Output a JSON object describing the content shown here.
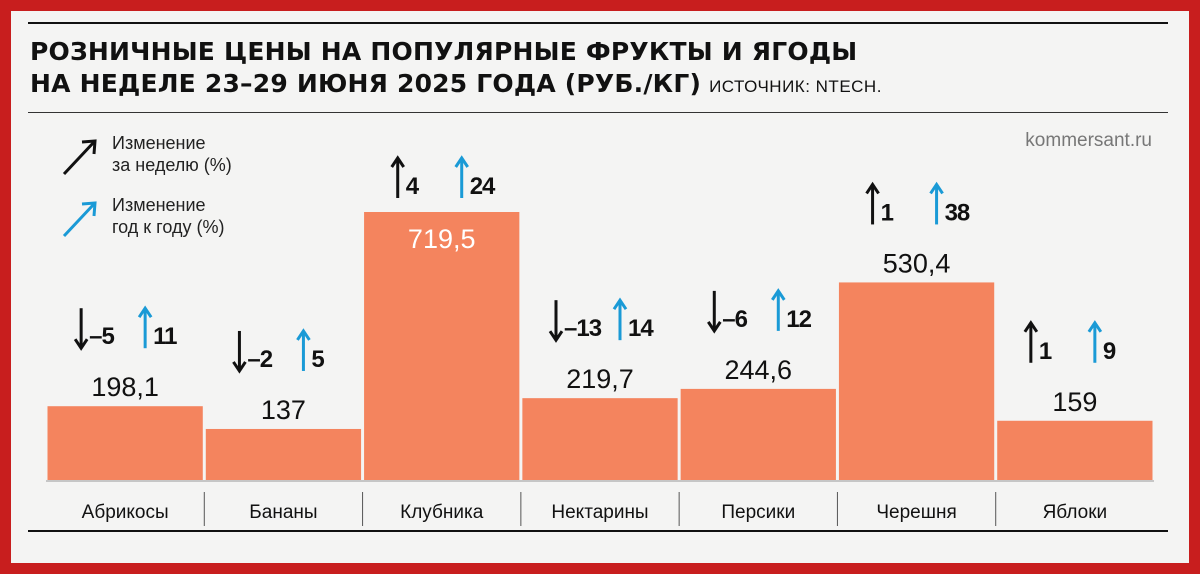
{
  "header": {
    "title_line1": "РОЗНИЧНЫЕ ЦЕНЫ НА ПОПУЛЯРНЫЕ ФРУКТЫ И ЯГОДЫ",
    "title_line2": "НА НЕДЕЛЕ 23–29 ИЮНЯ 2025 ГОДА (РУБ./КГ)",
    "source": "ИСТОЧНИК: NTECH."
  },
  "brand": "kommersant.ru",
  "legend": {
    "week_line1": "Изменение",
    "week_line2": "за неделю (%)",
    "year_line1": "Изменение",
    "year_line2": "год к году (%)"
  },
  "colors": {
    "bar": "#f4845e",
    "week_arrow": "#111111",
    "year_arrow": "#1a9ad6",
    "bar_label_inside": "#ffffff"
  },
  "chart_data": {
    "type": "bar",
    "categories": [
      "Абрикосы",
      "Бананы",
      "Клубника",
      "Нектарины",
      "Персики",
      "Черешня",
      "Яблоки"
    ],
    "values": [
      198.1,
      137,
      719.5,
      219.7,
      244.6,
      530.4,
      159
    ],
    "value_labels": [
      "198,1",
      "137",
      "719,5",
      "219,7",
      "244,6",
      "530,4",
      "159"
    ],
    "series": [
      {
        "name": "Изменение за неделю (%)",
        "values": [
          -5,
          -2,
          4,
          -13,
          -6,
          1,
          1
        ],
        "labels": [
          "–5",
          "–2",
          "4",
          "–13",
          "–6",
          "1",
          "1"
        ]
      },
      {
        "name": "Изменение год к году (%)",
        "values": [
          11,
          5,
          24,
          14,
          12,
          38,
          9
        ],
        "labels": [
          "11",
          "5",
          "24",
          "14",
          "12",
          "38",
          "9"
        ]
      }
    ],
    "title": "РОЗНИЧНЫЕ ЦЕНЫ НА ПОПУЛЯРНЫЕ ФРУКТЫ И ЯГОДЫ НА НЕДЕЛЕ 23–29 ИЮНЯ 2025 ГОДА (РУБ./КГ)",
    "ylabel": "",
    "xlabel": "",
    "ylim": [
      0,
      719.5
    ],
    "grid": false
  }
}
